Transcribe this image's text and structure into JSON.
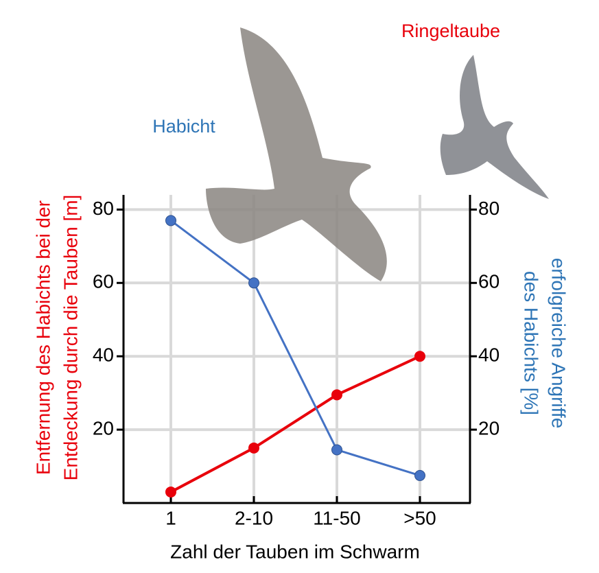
{
  "chart_data": {
    "type": "line",
    "annotations": [
      "Habicht",
      "Ringeltaube"
    ],
    "x_label": "Zahl der Tauben im Schwarm",
    "y_label": [
      "Entfernung des Habichts bei der",
      "Entdeckung durch die Tauben [m]"
    ],
    "y2_label": [
      "erfolgreiche Angriffe",
      "des Habichts [%]"
    ],
    "categories": [
      "1",
      "2-10",
      "11-50",
      ">50"
    ],
    "series": [
      {
        "name": "Ringeltaube",
        "color": "#e8000b",
        "values": [
          3,
          15,
          29.5,
          40
        ]
      },
      {
        "name": "Habicht",
        "color": "#4472c4",
        "values": [
          77,
          60,
          14.5,
          7.5
        ],
        "axis": "y2"
      }
    ],
    "ylim": [
      0,
      84
    ],
    "yticks": [
      20,
      40,
      60,
      80
    ],
    "y2lim": [
      0,
      84
    ],
    "y2ticks": [
      20,
      40,
      60,
      80
    ],
    "grid": true
  }
}
